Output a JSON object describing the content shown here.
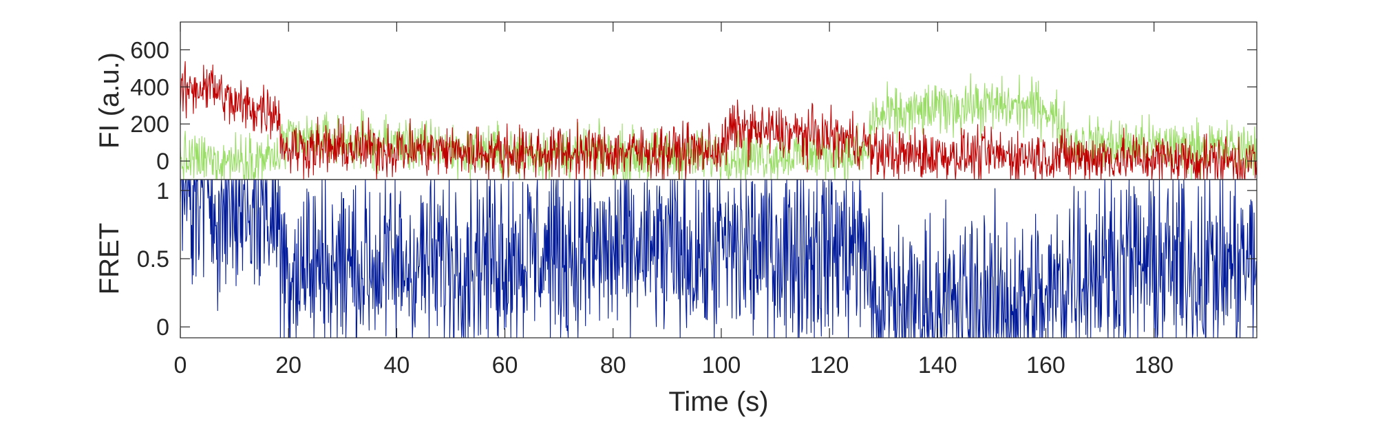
{
  "chart_data": [
    {
      "panel": "top",
      "type": "line",
      "ylabel": "FI (a.u.)",
      "xlim": [
        0,
        199
      ],
      "ylim": [
        -100,
        750
      ],
      "yticks": [
        0,
        200,
        400,
        600
      ],
      "ytick_labels": [
        "0",
        "200",
        "400",
        "600"
      ],
      "series": [
        {
          "color": "#99dd66",
          "samples_per_second": 10,
          "noise_amplitude": 140,
          "clip": [
            -100,
            750
          ],
          "segments": [
            [
              0,
              0
            ],
            [
              18,
              15
            ],
            [
              19,
              100
            ],
            [
              25,
              115
            ],
            [
              40,
              90
            ],
            [
              60,
              45
            ],
            [
              80,
              35
            ],
            [
              100,
              30
            ],
            [
              127,
              35
            ],
            [
              128,
              230
            ],
            [
              145,
              300
            ],
            [
              160,
              290
            ],
            [
              165,
              95
            ],
            [
              199,
              65
            ]
          ]
        },
        {
          "color": "#c00000",
          "samples_per_second": 10,
          "noise_amplitude": 140,
          "clip": [
            -100,
            750
          ],
          "segments": [
            [
              0,
              360
            ],
            [
              5,
              420
            ],
            [
              10,
              300
            ],
            [
              18,
              270
            ],
            [
              19,
              70
            ],
            [
              40,
              65
            ],
            [
              60,
              45
            ],
            [
              80,
              45
            ],
            [
              100,
              60
            ],
            [
              102,
              175
            ],
            [
              120,
              130
            ],
            [
              127,
              95
            ],
            [
              128,
              35
            ],
            [
              160,
              25
            ],
            [
              199,
              0
            ]
          ]
        }
      ]
    },
    {
      "panel": "bottom",
      "type": "line",
      "ylabel": "FRET",
      "xlabel": "Time (s)",
      "xlim": [
        0,
        199
      ],
      "ylim": [
        -0.08,
        1.08
      ],
      "yticks": [
        0,
        0.5,
        1
      ],
      "ytick_labels": [
        "0",
        "0.5",
        "1"
      ],
      "xticks": [
        0,
        20,
        40,
        60,
        80,
        100,
        120,
        140,
        160,
        180
      ],
      "xtick_labels": [
        "0",
        "20",
        "40",
        "60",
        "80",
        "100",
        "120",
        "140",
        "160",
        "180"
      ],
      "series": [
        {
          "color": "#001a99",
          "samples_per_second": 10,
          "noise_amplitude": 0.7,
          "clip": [
            -0.08,
            1.08
          ],
          "segments": [
            [
              0,
              1.0
            ],
            [
              18,
              0.85
            ],
            [
              19,
              0.45
            ],
            [
              40,
              0.45
            ],
            [
              60,
              0.55
            ],
            [
              100,
              0.55
            ],
            [
              127,
              0.6
            ],
            [
              128,
              0.15
            ],
            [
              160,
              0.15
            ],
            [
              165,
              0.45
            ],
            [
              199,
              0.45
            ]
          ]
        }
      ]
    }
  ]
}
